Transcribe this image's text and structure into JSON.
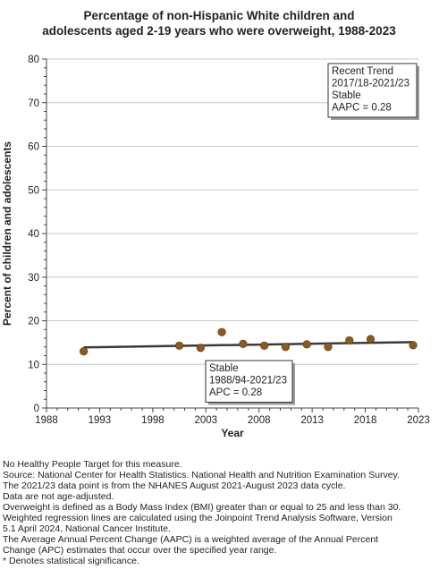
{
  "chart_data": {
    "type": "scatter",
    "title_lines": [
      "Percentage of non-Hispanic White children and",
      "adolescents aged 2-19 years who were overweight, 1988-2023"
    ],
    "xlabel": "Year",
    "ylabel": "Percent of children and adolescents",
    "xlim": [
      1988,
      2023
    ],
    "ylim": [
      0,
      80
    ],
    "x_ticks": [
      1988,
      1993,
      1998,
      2003,
      2008,
      2013,
      2018,
      2023
    ],
    "y_ticks": [
      0,
      10,
      20,
      30,
      40,
      50,
      60,
      70,
      80
    ],
    "grid": true,
    "point_color": "#8b5a1e",
    "line_color": "#3a3a3a",
    "observed": {
      "x": [
        1991.5,
        2000.5,
        2002.5,
        2004.5,
        2006.5,
        2008.5,
        2010.5,
        2012.5,
        2014.5,
        2016.5,
        2018.5,
        2022.5
      ],
      "y": [
        13.0,
        14.3,
        13.8,
        17.4,
        14.7,
        14.3,
        14.0,
        14.6,
        14.0,
        15.5,
        15.8,
        14.4
      ]
    },
    "trend": {
      "x": [
        1991.5,
        2022.5
      ],
      "y": [
        13.9,
        15.1
      ]
    },
    "annotations": [
      {
        "lines": [
          "Recent Trend",
          "2017/18-2021/23",
          "Stable",
          "AAPC =  0.28"
        ]
      },
      {
        "lines": [
          "Stable",
          "1988/94-2021/23",
          "APC =  0.28"
        ]
      }
    ]
  },
  "footnotes": [
    "No Healthy People Target for this measure.",
    "Source: National Center for Health Statistics. National Health and Nutrition Examination Survey.",
    "The 2021/23 data point is from the NHANES August 2021-August 2023 data cycle.",
    "Data are not age-adjusted.",
    "Overweight is defined as a Body Mass Index (BMI) greater than or equal to 25 and less than 30.",
    "Weighted regression lines are calculated using the Joinpoint Trend Analysis Software, Version",
    "5.1 April 2024, National Cancer Institute.",
    "The Average Annual Percent Change (AAPC) is a weighted average of the Annual Percent",
    "Change (APC) estimates that occur over the specified year range.",
    "* Denotes statistical significance."
  ]
}
